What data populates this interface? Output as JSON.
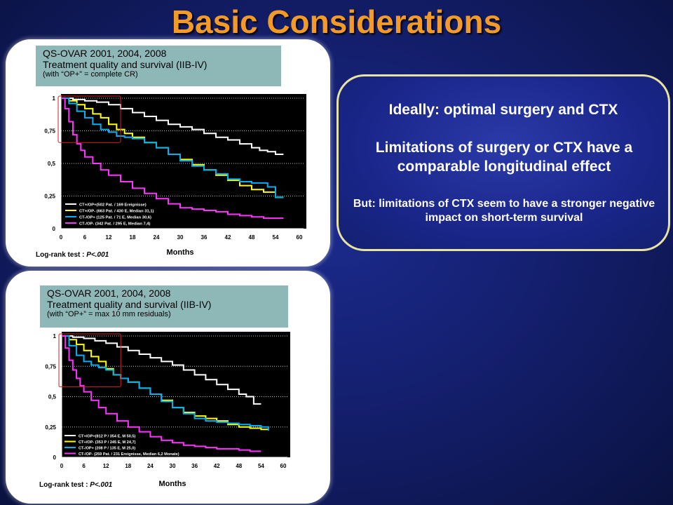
{
  "title": "Basic Considerations",
  "panels": [
    {
      "box_line1": "QS-OVAR 2001, 2004, 2008",
      "box_line2": "Treatment quality and survival (IIB-IV)",
      "box_line3": "(with “OP+” = complete CR)",
      "logrank_prefix": "Log-rank test : ",
      "logrank_p": "P<.001"
    },
    {
      "box_line1": "QS-OVAR 2001, 2004, 2008",
      "box_line2": "Treatment quality and survival (IIB-IV)",
      "box_line3": "(with “OP+” = max 10 mm residuals)",
      "logrank_prefix": "Log-rank test : ",
      "logrank_p": "P<.001"
    }
  ],
  "right_box": {
    "p1": "Ideally: optimal surgery and CTX",
    "p2": "Limitations of surgery or CTX have a comparable longitudinal effect",
    "p3": "But: limitations of CTX seem to have a stronger negative impact on short-term survival"
  },
  "colors": {
    "white_curve": "#ffffff",
    "yellow_curve": "#ffff00",
    "cyan_curve": "#00b0f0",
    "magenta_curve": "#ff33ff",
    "highlight": "#d62020",
    "title": "#f39a27"
  },
  "chart_data": [
    {
      "type": "line",
      "xlabel": "Months",
      "ylabel": "",
      "xlim": [
        0,
        60
      ],
      "ylim": [
        0,
        1
      ],
      "x_ticks": [
        "0",
        "6",
        "12",
        "18",
        "24",
        "30",
        "36",
        "42",
        "48",
        "54",
        "60"
      ],
      "y_ticks": [
        "0",
        "0,25",
        "0,5",
        "0,75",
        "1"
      ],
      "grid": true,
      "legend_position": "bottom-left",
      "series": [
        {
          "name": "CT+/OP+(502 Pat. / 169 Ereignisse)",
          "color": "#ffffff",
          "x": [
            0,
            3,
            6,
            9,
            12,
            15,
            18,
            21,
            24,
            27,
            30,
            33,
            36,
            39,
            42,
            45,
            48,
            50,
            52,
            54,
            56
          ],
          "y": [
            1,
            0.99,
            0.98,
            0.97,
            0.95,
            0.92,
            0.89,
            0.86,
            0.83,
            0.8,
            0.78,
            0.76,
            0.73,
            0.7,
            0.68,
            0.65,
            0.62,
            0.6,
            0.59,
            0.57,
            0.57
          ]
        },
        {
          "name": "CT+/OP- (663 Pat. / 430 E, Median 31,1)",
          "color": "#ffff00",
          "x": [
            0,
            2,
            4,
            6,
            8,
            10,
            12,
            14,
            16,
            18,
            21,
            24,
            27,
            30,
            33,
            36,
            39,
            42,
            45,
            48,
            51,
            54,
            56
          ],
          "y": [
            1,
            0.98,
            0.95,
            0.92,
            0.88,
            0.85,
            0.8,
            0.76,
            0.73,
            0.7,
            0.66,
            0.62,
            0.57,
            0.53,
            0.49,
            0.45,
            0.41,
            0.37,
            0.33,
            0.3,
            0.28,
            0.24,
            0.24
          ]
        },
        {
          "name": "CT-/OP+ (125 Pat. / 71 E, Median 30,6)",
          "color": "#00b0f0",
          "x": [
            0,
            2,
            4,
            6,
            8,
            10,
            12,
            14,
            16,
            18,
            21,
            24,
            27,
            30,
            33,
            36,
            39,
            42,
            45,
            48,
            50,
            52,
            54,
            56
          ],
          "y": [
            1,
            0.96,
            0.9,
            0.85,
            0.8,
            0.76,
            0.74,
            0.71,
            0.7,
            0.69,
            0.66,
            0.62,
            0.57,
            0.52,
            0.48,
            0.45,
            0.42,
            0.38,
            0.36,
            0.35,
            0.35,
            0.32,
            0.24,
            0.24
          ]
        },
        {
          "name": "CT-/OP- (342 Pat. / 295 E, Median 7,4)",
          "color": "#ff33ff",
          "x": [
            0,
            1,
            2,
            3,
            4,
            5,
            6,
            8,
            10,
            12,
            15,
            18,
            21,
            24,
            27,
            30,
            33,
            36,
            39,
            42,
            45,
            48,
            51,
            54,
            56
          ],
          "y": [
            1,
            0.92,
            0.82,
            0.72,
            0.65,
            0.6,
            0.55,
            0.5,
            0.45,
            0.41,
            0.36,
            0.31,
            0.27,
            0.23,
            0.19,
            0.16,
            0.15,
            0.14,
            0.13,
            0.11,
            0.1,
            0.09,
            0.08,
            0.08,
            0.08
          ]
        }
      ],
      "highlight_box": {
        "x": [
          0,
          15
        ],
        "y": [
          0.66,
          1.0
        ]
      }
    },
    {
      "type": "line",
      "xlabel": "Months",
      "ylabel": "",
      "xlim": [
        0,
        60
      ],
      "ylim": [
        0,
        1
      ],
      "x_ticks": [
        "0",
        "6",
        "12",
        "18",
        "24",
        "30",
        "36",
        "42",
        "48",
        "54",
        "60"
      ],
      "y_ticks": [
        "0",
        "0,25",
        "0,5",
        "0,75",
        "1"
      ],
      "grid": true,
      "legend_position": "bottom-left",
      "series": [
        {
          "name": "CT+/OP+(812 P / 354 E, M 50,5)",
          "color": "#ffffff",
          "x": [
            0,
            3,
            6,
            9,
            12,
            15,
            18,
            21,
            24,
            27,
            30,
            33,
            36,
            39,
            42,
            45,
            48,
            50,
            52,
            54
          ],
          "y": [
            1,
            0.99,
            0.98,
            0.96,
            0.94,
            0.91,
            0.88,
            0.85,
            0.82,
            0.79,
            0.76,
            0.72,
            0.68,
            0.64,
            0.6,
            0.56,
            0.52,
            0.5,
            0.44,
            0.44
          ]
        },
        {
          "name": "CT+/OP- (353 P / 245 E, M 24,7)",
          "color": "#ffff00",
          "x": [
            0,
            2,
            4,
            6,
            8,
            10,
            12,
            14,
            16,
            18,
            21,
            24,
            27,
            30,
            33,
            36,
            39,
            42,
            45,
            48,
            51,
            54,
            56
          ],
          "y": [
            1,
            0.97,
            0.93,
            0.88,
            0.83,
            0.79,
            0.73,
            0.68,
            0.65,
            0.62,
            0.57,
            0.52,
            0.47,
            0.41,
            0.37,
            0.34,
            0.32,
            0.3,
            0.27,
            0.25,
            0.24,
            0.23,
            0.23
          ]
        },
        {
          "name": "CT-/OP+ (208 P / 135 E, M 25,0)",
          "color": "#00b0f0",
          "x": [
            0,
            2,
            4,
            6,
            8,
            10,
            12,
            14,
            16,
            18,
            21,
            24,
            27,
            30,
            33,
            36,
            39,
            42,
            45,
            48,
            51,
            54,
            56
          ],
          "y": [
            1,
            0.92,
            0.84,
            0.79,
            0.76,
            0.74,
            0.72,
            0.68,
            0.65,
            0.62,
            0.57,
            0.52,
            0.46,
            0.41,
            0.36,
            0.32,
            0.3,
            0.29,
            0.28,
            0.27,
            0.26,
            0.25,
            0.22
          ]
        },
        {
          "name": "CT-/OP- (259 Pat. / 231 Ereignisse, Median 6,2 Monate)",
          "color": "#ff33ff",
          "x": [
            0,
            1,
            2,
            3,
            4,
            5,
            6,
            8,
            10,
            12,
            15,
            18,
            21,
            24,
            27,
            30,
            33,
            36,
            39,
            42,
            45,
            48,
            51,
            54
          ],
          "y": [
            1,
            0.9,
            0.8,
            0.72,
            0.65,
            0.59,
            0.54,
            0.47,
            0.41,
            0.36,
            0.3,
            0.25,
            0.21,
            0.17,
            0.14,
            0.12,
            0.1,
            0.09,
            0.08,
            0.07,
            0.07,
            0.06,
            0.05,
            0.05
          ]
        }
      ],
      "highlight_box": {
        "x": [
          0,
          16
        ],
        "y": [
          0.58,
          1.0
        ]
      }
    }
  ]
}
